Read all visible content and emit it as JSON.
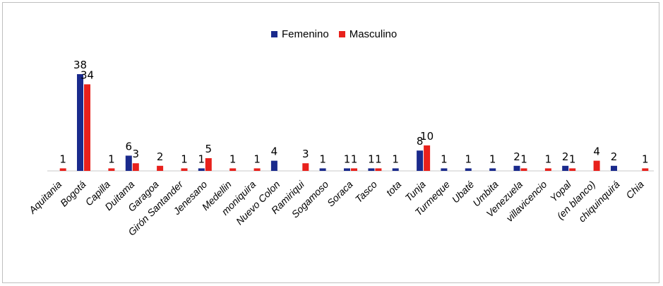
{
  "chart_data": {
    "type": "bar",
    "title": "",
    "xlabel": "",
    "ylabel": "",
    "ylim": [
      0,
      40
    ],
    "grid": false,
    "legend_position": "top-center",
    "categories": [
      "Aquitania",
      "Bogotá",
      "Capilla",
      "Duitama",
      "Garagoa",
      "Girón Santander",
      "Jenesano",
      "Medellin",
      "moniquira",
      "Nuevo Colon",
      "Ramiriqui",
      "Sogamoso",
      "Soraca",
      "Tasco",
      "tota",
      "Tunja",
      "Turmeque",
      "Ubaté",
      "Umbita",
      "Venezuela",
      "villavicencio",
      "Yopal",
      "(en blanco)",
      "chiquinquirá",
      "Chia"
    ],
    "series": [
      {
        "name": "Femenino",
        "color": "#1a2a8c",
        "values": [
          null,
          38,
          null,
          6,
          null,
          null,
          1,
          null,
          null,
          4,
          null,
          1,
          1,
          1,
          1,
          8,
          1,
          1,
          1,
          2,
          null,
          2,
          null,
          2,
          null
        ]
      },
      {
        "name": "Masculino",
        "color": "#e8211c",
        "values": [
          1,
          34,
          1,
          3,
          2,
          1,
          5,
          1,
          1,
          null,
          3,
          null,
          1,
          1,
          null,
          10,
          null,
          null,
          null,
          1,
          1,
          1,
          4,
          null,
          1
        ]
      }
    ]
  }
}
